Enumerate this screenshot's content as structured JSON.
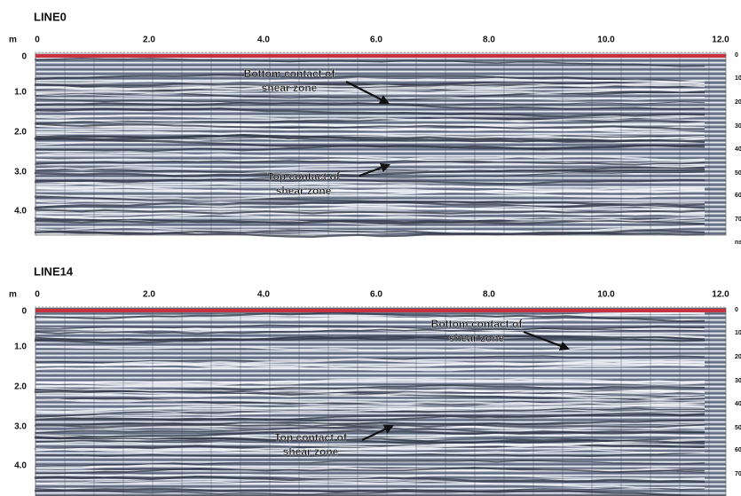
{
  "panels": [
    {
      "title": "LINE0",
      "y_unit": "m",
      "x_ticks": [
        "0",
        "2.0",
        "4.0",
        "6.0",
        "8.0",
        "10.0",
        "12.0"
      ],
      "y_ticks": [
        "0",
        "1.0",
        "2.0",
        "3.0",
        "4.0"
      ],
      "right_ticks": [
        "0",
        "10",
        "20",
        "30",
        "40",
        "50",
        "60",
        "70"
      ],
      "right_unit": "ns",
      "annotations": [
        {
          "lines": [
            "Bottom contact of",
            "shear zone"
          ]
        },
        {
          "lines": [
            "Top contact of",
            "shear zone"
          ]
        }
      ]
    },
    {
      "title": "LINE14",
      "y_unit": "m",
      "x_ticks": [
        "0",
        "2.0",
        "4.0",
        "6.0",
        "8.0",
        "10.0",
        "12.0"
      ],
      "y_ticks": [
        "0",
        "1.0",
        "2.0",
        "3.0",
        "4.0"
      ],
      "right_ticks": [
        "0",
        "10",
        "20",
        "30",
        "40",
        "50",
        "60",
        "70"
      ],
      "annotations": [
        {
          "lines": [
            "Bottom contact of",
            "shear zone"
          ]
        },
        {
          "lines": [
            "Top contact of",
            "shear zone"
          ]
        }
      ]
    }
  ]
}
